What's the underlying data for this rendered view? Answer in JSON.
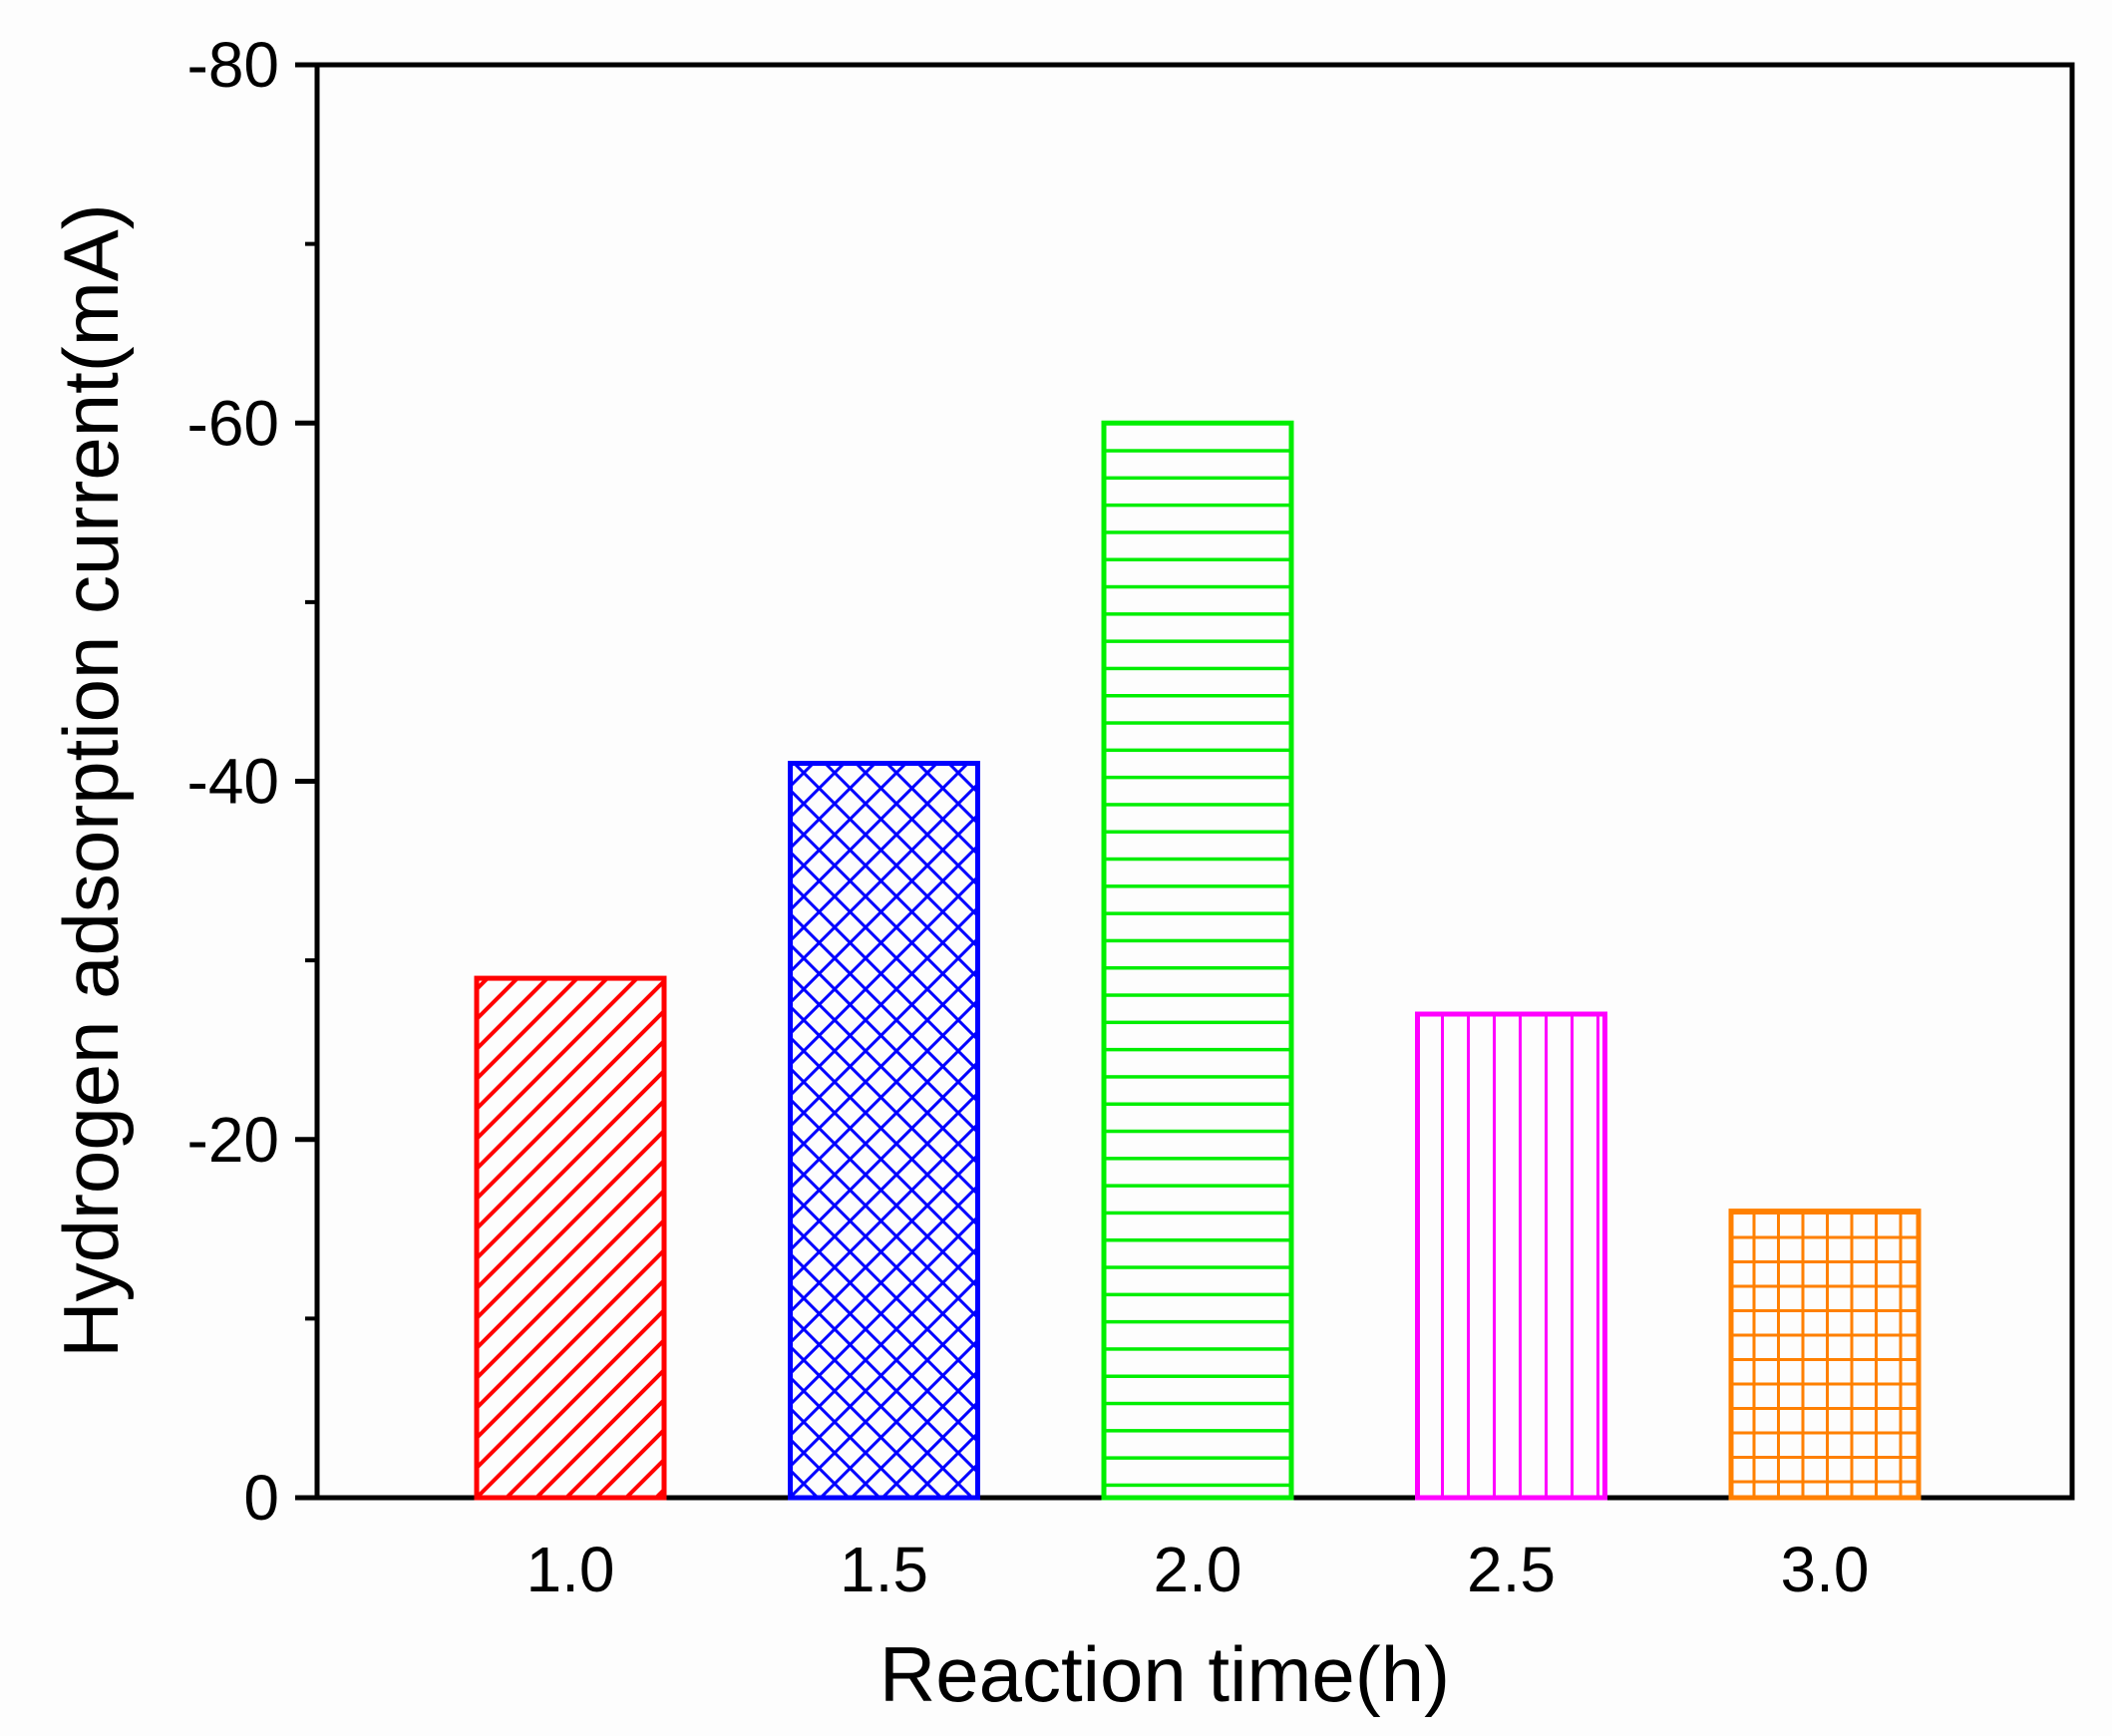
{
  "chart_data": {
    "type": "bar",
    "title": "",
    "xlabel": "Reaction time(h)",
    "ylabel": "Hydrogen adsorption current(mA)",
    "categories": [
      "1.0",
      "1.5",
      "2.0",
      "2.5",
      "3.0"
    ],
    "values": [
      -29,
      -41,
      -60,
      -27,
      -16
    ],
    "ylim": [
      0,
      -80
    ],
    "y_ticks": [
      0,
      -20,
      -40,
      -60,
      -80
    ],
    "y_tick_labels": [
      "0",
      "-20",
      "-40",
      "-60",
      "-80"
    ],
    "y_axis_inverted": true,
    "grid": false,
    "legend": "none",
    "bar_colors": [
      "#ff0000",
      "#0000ff",
      "#00ee00",
      "#ff00ff",
      "#ff8000"
    ],
    "bar_patterns": [
      "diagonal",
      "crosshatch",
      "horizontal",
      "vertical",
      "grid"
    ]
  }
}
